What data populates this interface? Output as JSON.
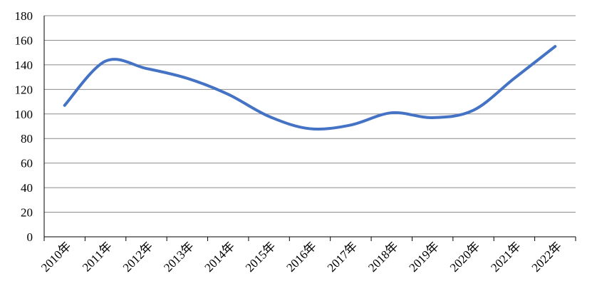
{
  "chart_data": {
    "type": "line",
    "title": "",
    "xlabel": "",
    "ylabel": "",
    "categories": [
      "2010年",
      "2011年",
      "2012年",
      "2013年",
      "2014年",
      "2015年",
      "2016年",
      "2017年",
      "2018年",
      "2019年",
      "2020年",
      "2021年",
      "2022年"
    ],
    "series": [
      {
        "values": [
          107,
          143,
          137,
          129,
          116,
          98,
          88,
          91,
          101,
          97,
          103,
          129,
          155
        ],
        "color": "#4472c4"
      }
    ],
    "ylim": [
      0,
      180
    ],
    "yticks": [
      0,
      20,
      40,
      60,
      80,
      100,
      120,
      140,
      160,
      180
    ],
    "grid": true,
    "smooth": true,
    "legend": "none"
  }
}
